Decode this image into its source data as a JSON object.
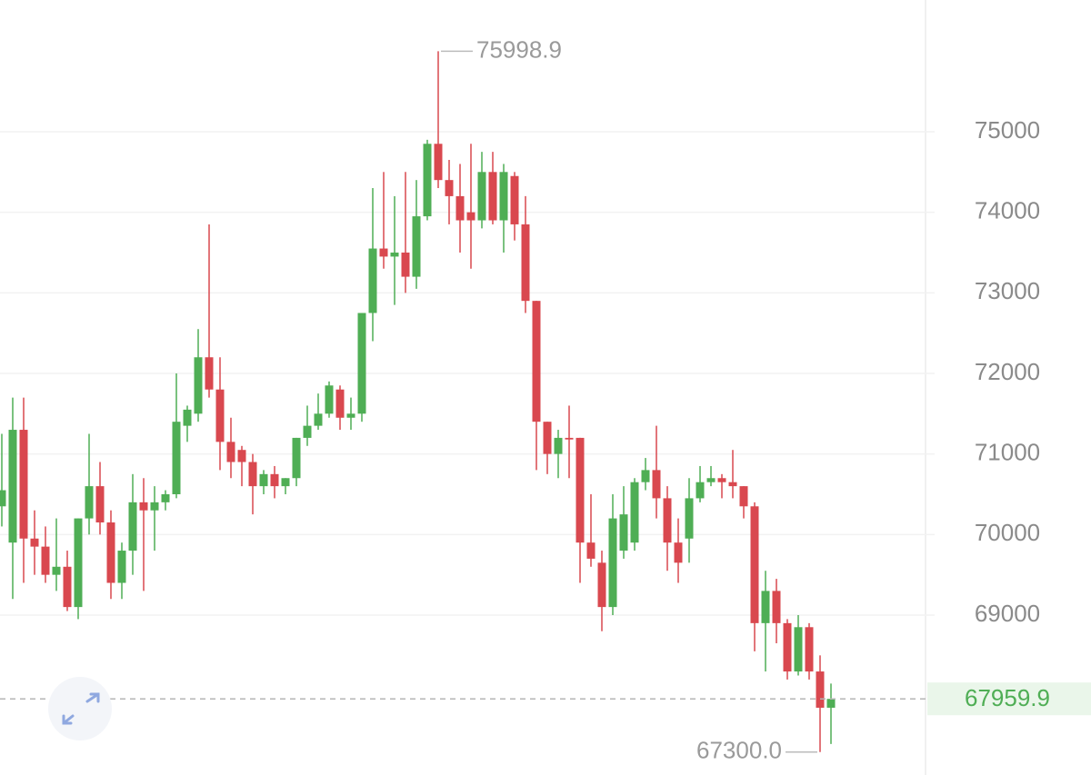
{
  "chart_data": {
    "type": "candlestick",
    "up_color": "#4fae55",
    "down_color": "#d9484f",
    "ylim": [
      67015,
      76635
    ],
    "yticks": [
      69000,
      70000,
      71000,
      72000,
      73000,
      74000,
      75000
    ],
    "grid": true,
    "max_label": 75998.9,
    "min_label": {
      "value": 67300,
      "label": "67300.0"
    },
    "last_price": 67959.9,
    "open": [
      70350,
      69900,
      71300,
      69950,
      69850,
      69500,
      69600,
      69100,
      70200,
      70600,
      70150,
      69400,
      69800,
      70400,
      70300,
      70400,
      70500,
      71350,
      71500,
      72200,
      71800,
      71150,
      71050,
      70900,
      70600,
      70750,
      70600,
      70700,
      71200,
      71350,
      71500,
      71800,
      71450,
      71500,
      72750,
      73550,
      73450,
      73500,
      73200,
      73950,
      74850,
      74400,
      74200,
      74000,
      73900,
      74500,
      73900,
      74450,
      73850,
      72900,
      71400,
      71000,
      71200,
      71200,
      69900,
      69650,
      69100,
      69800,
      69900,
      70650,
      70800,
      70450,
      69900,
      69950,
      70450,
      70650,
      70700,
      70650,
      70600,
      70350,
      68900,
      69300,
      68900,
      68300,
      68850,
      68300,
      67850
    ],
    "close": [
      70550,
      71300,
      69950,
      69850,
      69500,
      69600,
      69100,
      70200,
      70600,
      70150,
      69400,
      69800,
      70400,
      70300,
      70400,
      70500,
      71400,
      71550,
      72200,
      71800,
      71150,
      70900,
      70900,
      70600,
      70750,
      70600,
      70700,
      71200,
      71350,
      71500,
      71850,
      71450,
      71500,
      72750,
      73550,
      73450,
      73500,
      73200,
      73950,
      74850,
      74400,
      74200,
      73900,
      73900,
      74500,
      73900,
      74500,
      73850,
      72900,
      71400,
      71000,
      71200,
      71180,
      69900,
      69700,
      69100,
      70200,
      70250,
      70650,
      70800,
      70450,
      69900,
      69650,
      70450,
      70650,
      70700,
      70650,
      70600,
      70350,
      68900,
      69300,
      68900,
      68300,
      68850,
      68300,
      67850,
      67959.9
    ],
    "high": [
      71250,
      71700,
      71700,
      70300,
      70100,
      70200,
      69800,
      70200,
      71250,
      70900,
      70300,
      69900,
      70750,
      70700,
      70600,
      70550,
      72000,
      71600,
      72550,
      73850,
      72200,
      71450,
      71100,
      71000,
      70800,
      70850,
      70700,
      71200,
      71600,
      71750,
      71900,
      71850,
      71700,
      72750,
      74300,
      74500,
      74200,
      74500,
      74400,
      74900,
      75998.9,
      74650,
      74600,
      74850,
      74750,
      74750,
      74600,
      74500,
      74200,
      72900,
      71400,
      71300,
      71600,
      71200,
      70500,
      69800,
      70500,
      70600,
      70700,
      70950,
      71350,
      70600,
      70200,
      70700,
      70850,
      70850,
      70750,
      71050,
      70600,
      70400,
      69550,
      69450,
      68950,
      69000,
      68900,
      68500,
      68150
    ],
    "low": [
      70100,
      69200,
      69400,
      69500,
      69400,
      69300,
      69050,
      68950,
      70000,
      70000,
      69200,
      69200,
      69500,
      69300,
      69800,
      70300,
      70450,
      71150,
      71400,
      71700,
      70800,
      70700,
      70600,
      70250,
      70500,
      70450,
      70500,
      70600,
      71100,
      71300,
      71450,
      71300,
      71300,
      71400,
      72400,
      73300,
      72850,
      73000,
      73050,
      73900,
      74300,
      73850,
      73500,
      73300,
      73800,
      73850,
      73500,
      73650,
      72750,
      70800,
      70750,
      70700,
      70700,
      69400,
      69600,
      68800,
      69000,
      69700,
      69800,
      70550,
      70200,
      69550,
      69400,
      69650,
      70400,
      70600,
      70450,
      70450,
      70200,
      68550,
      68300,
      68650,
      68200,
      68250,
      68200,
      67300,
      67400
    ]
  }
}
